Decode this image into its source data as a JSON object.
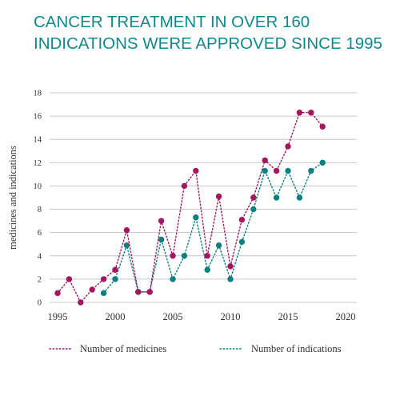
{
  "title_lines": [
    "CANCER TREATMENT IN OVER 160",
    "INDICATIONS WERE APPROVED SINCE 1995"
  ],
  "colors": {
    "medicines": "#a3175e",
    "indications": "#0e7f80",
    "title": "#0f8a8c",
    "grid": "#c8c8c8"
  },
  "chart_data": {
    "type": "line",
    "title": "CANCER TREATMENT IN OVER 160 INDICATIONS WERE APPROVED SINCE 1995",
    "xlabel": "",
    "ylabel": "medicines and indications",
    "xlim": [
      1995,
      2020
    ],
    "ylim": [
      0,
      18
    ],
    "x_ticks": [
      "1995",
      "2000",
      "2005",
      "2010",
      "2015",
      "2020"
    ],
    "y_ticks": [
      "0",
      "2",
      "4",
      "6",
      "8",
      "10",
      "12",
      "14",
      "16",
      "18"
    ],
    "grid": "horizontal",
    "legend_placement": "bottom",
    "series": [
      {
        "name": "Number of medicines",
        "x": [
          1995,
          1996,
          1997,
          1998,
          1999,
          2000,
          2001,
          2002,
          2003,
          2004,
          2005,
          2006,
          2007,
          2008,
          2009,
          2010,
          2011,
          2012,
          2013,
          2014,
          2015,
          2016,
          2017,
          2018
        ],
        "y": [
          0.8,
          2,
          0,
          1.1,
          2,
          2.8,
          6.2,
          0.9,
          0.9,
          7,
          4,
          10,
          11.3,
          4,
          9.1,
          3.1,
          7.1,
          9,
          12.2,
          11.3,
          13.4,
          16.3,
          16.3,
          15.1
        ]
      },
      {
        "name": "Number of indications",
        "x": [
          1999,
          2000,
          2001,
          2002,
          2003,
          2004,
          2005,
          2006,
          2007,
          2008,
          2009,
          2010,
          2011,
          2012,
          2013,
          2014,
          2015,
          2016,
          2017,
          2018
        ],
        "y": [
          0.8,
          2,
          4.9,
          0.9,
          0.9,
          5.4,
          2,
          4,
          7.3,
          2.8,
          4.9,
          2,
          5.2,
          8,
          11.3,
          9,
          11.3,
          9,
          11.3,
          12
        ]
      }
    ]
  }
}
